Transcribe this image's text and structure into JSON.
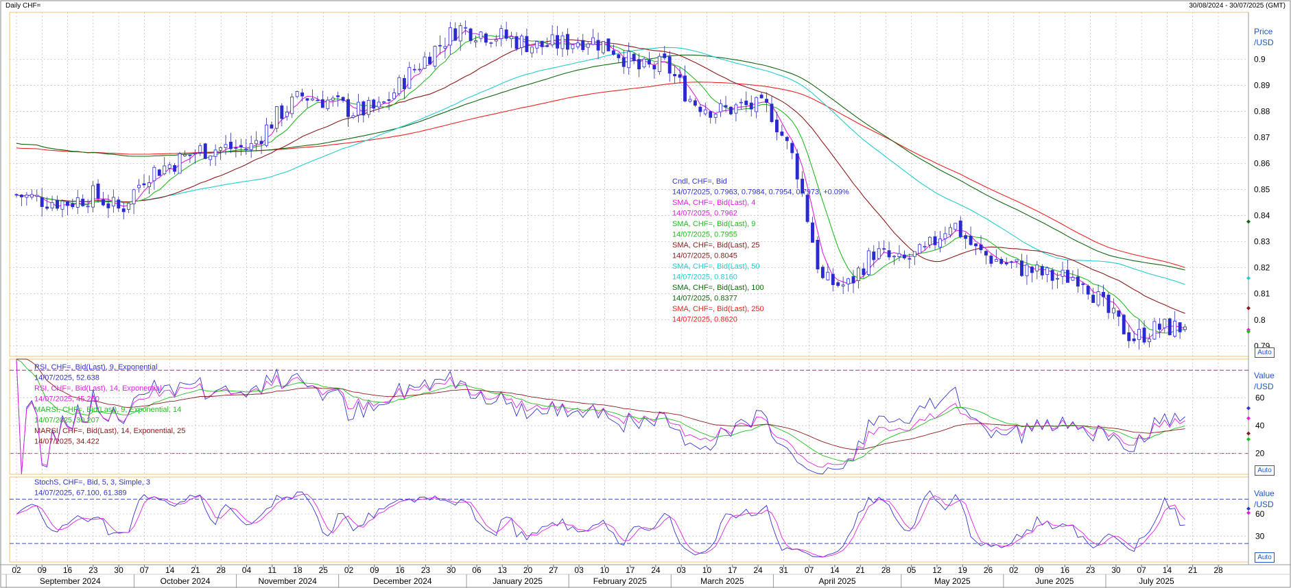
{
  "header": {
    "title": "Daily CHF=",
    "date_range": "30/08/2024 - 30/07/2025 (GMT)"
  },
  "auto_label": "Auto",
  "price_panel": {
    "axis_title_line1": "Price",
    "axis_title_line2": "/USD",
    "ticks": [
      0.79,
      0.8,
      0.81,
      0.82,
      0.83,
      0.84,
      0.85,
      0.86,
      0.87,
      0.88,
      0.89,
      0.9
    ],
    "ylim": [
      0.786,
      0.918
    ],
    "legend": [
      {
        "text": "Cndl, CHF=, Bid",
        "color": "#3333cc"
      },
      {
        "text": "14/07/2025, 0.7963, 0.7984, 0.7954, 0.7973, +0.09%",
        "color": "#3333cc"
      },
      {
        "text": "SMA, CHF=, Bid(Last),  4",
        "color": "#e020e0"
      },
      {
        "text": "14/07/2025, 0.7962",
        "color": "#e020e0"
      },
      {
        "text": "SMA, CHF=, Bid(Last),  9",
        "color": "#22bb22"
      },
      {
        "text": "14/07/2025, 0.7955",
        "color": "#22bb22"
      },
      {
        "text": "SMA, CHF=, Bid(Last),  25",
        "color": "#8b1a1a"
      },
      {
        "text": "14/07/2025, 0.8045",
        "color": "#8b1a1a"
      },
      {
        "text": "SMA, CHF=, Bid(Last),  50",
        "color": "#22cccc"
      },
      {
        "text": "14/07/2025, 0.8160",
        "color": "#22cccc"
      },
      {
        "text": "SMA, CHF=, Bid(Last),  100",
        "color": "#116611"
      },
      {
        "text": "14/07/2025, 0.8377",
        "color": "#116611"
      },
      {
        "text": "SMA, CHF=, Bid(Last),  250",
        "color": "#ee2222"
      },
      {
        "text": "14/07/2025, 0.8620",
        "color": "#ee2222"
      }
    ]
  },
  "rsi_panel": {
    "axis_title_line1": "Value",
    "axis_title_line2": "/USD",
    "ticks": [
      20,
      40,
      60
    ],
    "ylim": [
      5,
      88
    ],
    "ref_levels": [
      20,
      80
    ],
    "legend": [
      {
        "text": "RSI, CHF=, Bid(Last),  9, Exponential",
        "color": "#3333cc"
      },
      {
        "text": "14/07/2025, 52.638",
        "color": "#3333cc"
      },
      {
        "text": "RSI, CHF=, Bid(Last),  14, Exponential",
        "color": "#e020e0"
      },
      {
        "text": "14/07/2025, 45.250",
        "color": "#e020e0"
      },
      {
        "text": "MARSI, CHF=, Bid(Last),  9, Exponential, 14",
        "color": "#22bb22"
      },
      {
        "text": "14/07/2025, 30.207",
        "color": "#22bb22"
      },
      {
        "text": "MARSI, CHF=, Bid(Last),  14, Exponential, 25",
        "color": "#8b1a1a"
      },
      {
        "text": "14/07/2025, 34.422",
        "color": "#8b1a1a"
      }
    ]
  },
  "stoch_panel": {
    "axis_title_line1": "Value",
    "axis_title_line2": "/USD",
    "ticks": [
      30,
      60
    ],
    "ylim": [
      -5,
      110
    ],
    "ref_levels": [
      20,
      80
    ],
    "legend": [
      {
        "text": "StochS, CHF=, Bid,  5, 3, Simple, 3",
        "color": "#3333cc"
      },
      {
        "text": "14/07/2025, 67.100, 61.389",
        "color": "#3333cc"
      }
    ]
  },
  "x_axis": {
    "day_ticks": [
      "02",
      "09",
      "16",
      "23",
      "30",
      "07",
      "14",
      "21",
      "28",
      "04",
      "11",
      "18",
      "25",
      "02",
      "09",
      "16",
      "23",
      "30",
      "06",
      "13",
      "20",
      "27",
      "03",
      "10",
      "17",
      "24",
      "03",
      "10",
      "17",
      "24",
      "31",
      "07",
      "14",
      "21",
      "28",
      "05",
      "12",
      "19",
      "26",
      "02",
      "09",
      "16",
      "23",
      "30",
      "07",
      "14",
      "21",
      "28"
    ],
    "months": [
      "September 2024",
      "October 2024",
      "November 2024",
      "December 2024",
      "January 2025",
      "February 2025",
      "March 2025",
      "April 2025",
      "May 2025",
      "June 2025",
      "July 2025"
    ]
  },
  "chart_data": {
    "type": "candlestick",
    "title": "Daily CHF=",
    "date_range": "30/08/2024 - 30/07/2025 (GMT)",
    "weekly_close": [
      0.848,
      0.846,
      0.845,
      0.848,
      0.842,
      0.856,
      0.86,
      0.865,
      0.866,
      0.866,
      0.878,
      0.886,
      0.884,
      0.88,
      0.881,
      0.893,
      0.903,
      0.912,
      0.91,
      0.908,
      0.905,
      0.906,
      0.908,
      0.904,
      0.896,
      0.898,
      0.884,
      0.88,
      0.882,
      0.881,
      0.86,
      0.815,
      0.813,
      0.826,
      0.822,
      0.826,
      0.838,
      0.826,
      0.822,
      0.819,
      0.816,
      0.817,
      0.803,
      0.793,
      0.797,
      0.797
    ],
    "sma": [
      {
        "name": "SMA 4",
        "last": 0.7962
      },
      {
        "name": "SMA 9",
        "last": 0.7955
      },
      {
        "name": "SMA 25",
        "last": 0.8045
      },
      {
        "name": "SMA 50",
        "last": 0.816
      },
      {
        "name": "SMA 100",
        "last": 0.8377
      },
      {
        "name": "SMA 250",
        "last": 0.862
      }
    ],
    "last_candle": {
      "date": "14/07/2025",
      "open": 0.7963,
      "high": 0.7984,
      "low": 0.7954,
      "close": 0.7973,
      "change": "+0.09%"
    },
    "rsi_last": {
      "rsi9": 52.638,
      "rsi14": 45.25,
      "marsi9": 30.207,
      "marsi14": 34.422
    },
    "stoch_last": {
      "k": 67.1,
      "d": 61.389
    }
  }
}
